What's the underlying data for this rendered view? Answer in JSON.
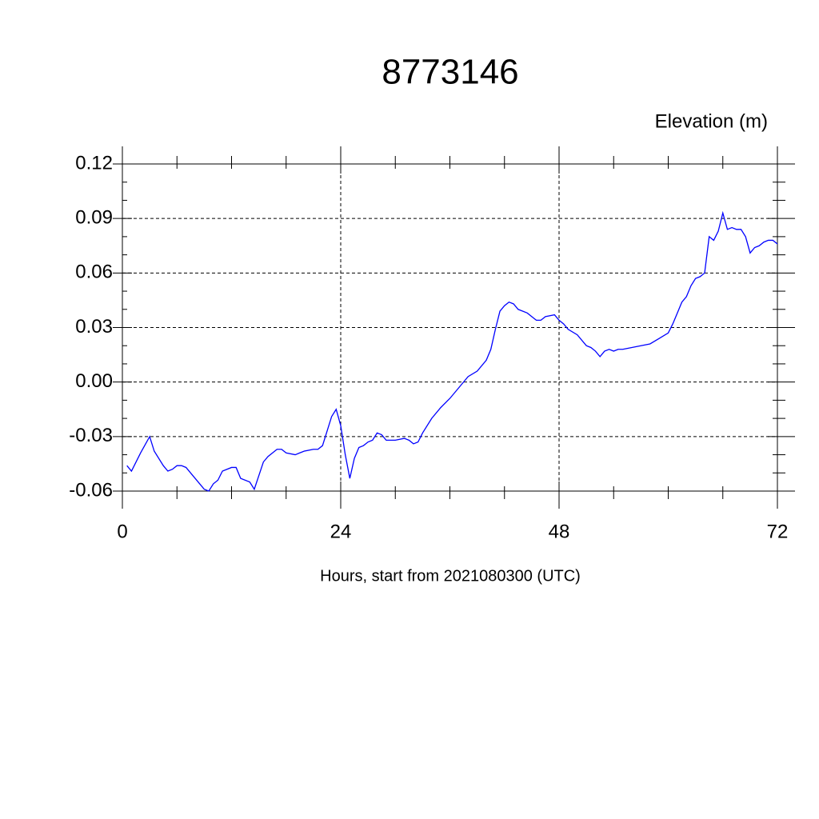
{
  "chart_data": {
    "type": "line",
    "title": "8773146",
    "y_label": "Elevation (m)",
    "x_label": "Hours, start from 2021080300 (UTC)",
    "xlim": [
      0,
      72
    ],
    "xticks": [
      0,
      24,
      48,
      72
    ],
    "ylim": [
      -0.06,
      0.12
    ],
    "yticks": [
      -0.06,
      -0.03,
      {
        "value": 0,
        "label": "0.00"
      },
      0.03,
      0.06,
      0.09,
      0.12
    ],
    "grid": true,
    "x": [
      0.5,
      1,
      2,
      3,
      3.5,
      4.5,
      5,
      5.5,
      6,
      6.5,
      7,
      7.5,
      8.5,
      9,
      9.5,
      10,
      10.5,
      11,
      12,
      12.5,
      13,
      14,
      14.5,
      15.5,
      16,
      17,
      17.5,
      18,
      19,
      19.5,
      20,
      21,
      21.5,
      22,
      22.5,
      23,
      23.5,
      24,
      24.5,
      25,
      25.5,
      26,
      26.5,
      27,
      27.5,
      28,
      28.5,
      29,
      30,
      31,
      31.5,
      32,
      32.5,
      33,
      34,
      35,
      36,
      37,
      38,
      39,
      40,
      40.5,
      41,
      41.5,
      42,
      42.5,
      43,
      43.5,
      44.5,
      45,
      45.5,
      46,
      46.5,
      47.5,
      48,
      48.5,
      49,
      50,
      51,
      51.5,
      52,
      52.5,
      53,
      53.5,
      54,
      54.5,
      55,
      56,
      57,
      58,
      59,
      60,
      60.5,
      61,
      61.5,
      62,
      62.5,
      63,
      63.5,
      64,
      64.5,
      65,
      65.5,
      66,
      66.5,
      67,
      67.5,
      68,
      68.5,
      69,
      69.5,
      70,
      70.5,
      71,
      71.5,
      72
    ],
    "series": [
      {
        "name": "Elevation",
        "color": "#0000ff",
        "values": [
          -0.046,
          -0.049,
          -0.039,
          -0.03,
          -0.038,
          -0.046,
          -0.049,
          -0.048,
          -0.046,
          -0.046,
          -0.047,
          -0.05,
          -0.056,
          -0.059,
          -0.06,
          -0.056,
          -0.054,
          -0.049,
          -0.047,
          -0.047,
          -0.053,
          -0.055,
          -0.059,
          -0.044,
          -0.041,
          -0.037,
          -0.037,
          -0.039,
          -0.04,
          -0.039,
          -0.038,
          -0.037,
          -0.037,
          -0.035,
          -0.027,
          -0.019,
          -0.015,
          -0.024,
          -0.04,
          -0.053,
          -0.042,
          -0.036,
          -0.035,
          -0.033,
          -0.032,
          -0.028,
          -0.029,
          -0.032,
          -0.032,
          -0.031,
          -0.032,
          -0.034,
          -0.033,
          -0.028,
          -0.02,
          -0.014,
          -0.009,
          -0.003,
          0.003,
          0.006,
          0.012,
          0.018,
          0.029,
          0.039,
          0.042,
          0.044,
          0.043,
          0.04,
          0.038,
          0.036,
          0.034,
          0.034,
          0.036,
          0.037,
          0.034,
          0.032,
          0.029,
          0.026,
          0.02,
          0.019,
          0.017,
          0.014,
          0.017,
          0.018,
          0.017,
          0.018,
          0.018,
          0.019,
          0.02,
          0.021,
          0.024,
          0.027,
          0.032,
          0.038,
          0.044,
          0.047,
          0.053,
          0.057,
          0.058,
          0.06,
          0.08,
          0.078,
          0.083,
          0.093,
          0.084,
          0.085,
          0.084,
          0.084,
          0.08,
          0.071,
          0.074,
          0.075,
          0.077,
          0.078,
          0.078,
          0.076
        ]
      }
    ]
  }
}
